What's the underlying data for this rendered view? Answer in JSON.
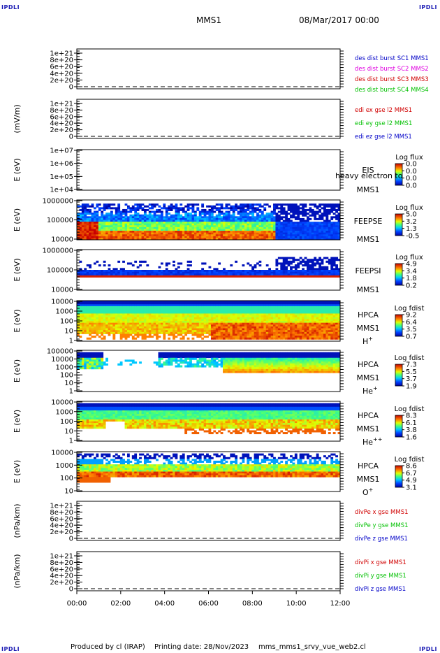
{
  "corner_label": "IPDLI",
  "header": {
    "mission": "MMS1",
    "datetime": "08/Mar/2017 00:00"
  },
  "footer": {
    "produced_by": "Produced by cl (IRAP)",
    "printing_date": "Printing date: 28/Nov/2023",
    "file": "mms_mms1_srvy_vue_web2.cl"
  },
  "chart_data": [
    {
      "type": "line",
      "ylabel": "",
      "yticks": [
        "1e+21",
        "8e+20",
        "6e+20",
        "4e+20",
        "2e+20",
        "0"
      ],
      "ylim": [
        0,
        1e+21
      ],
      "series": [
        {
          "name": "des dist burst SC1 MMS1",
          "color": "#0000c8"
        },
        {
          "name": "des dist burst SC2 MMS2",
          "color": "#e000e0"
        },
        {
          "name": "des dist burst SC3 MMS3",
          "color": "#d00000"
        },
        {
          "name": "des dist burst SC4 MMS4",
          "color": "#00c000"
        }
      ],
      "values": "no data (zero dashed line)"
    },
    {
      "type": "line",
      "ylabel": "(mV/m)",
      "yticks": [
        "1e+21",
        "8e+20",
        "6e+20",
        "4e+20",
        "2e+20",
        "0"
      ],
      "ylim": [
        0,
        1e+21
      ],
      "series": [
        {
          "name": "edi ex gse l2 MMS1",
          "color": "#d00000"
        },
        {
          "name": "edi ey gse l2 MMS1",
          "color": "#00c000"
        },
        {
          "name": "edi ez gse l2 MMS1",
          "color": "#0000c8"
        }
      ],
      "values": "no data (zero dashed line)"
    },
    {
      "type": "heatmap",
      "ylabel": "E (eV)",
      "yticks": [
        "1e+07",
        "1e+06",
        "1e+05",
        "1e+04"
      ],
      "instrument": "EIS",
      "spacecraft": "MMS1",
      "note": "heavy electron to",
      "colorbar": {
        "title": "Log flux",
        "ticks": [
          "0.0",
          "0.0",
          "0.0",
          "0.0"
        ]
      },
      "values": "empty"
    },
    {
      "type": "heatmap",
      "ylabel": "E (eV)",
      "yticks": [
        "1000000",
        "100000",
        "10000"
      ],
      "instrument": "FEEPSE",
      "spacecraft": "MMS1",
      "colorbar": {
        "title": "Log flux",
        "ticks": [
          "5.0",
          "3.2",
          "1.3",
          "-0.5"
        ]
      }
    },
    {
      "type": "heatmap",
      "ylabel": "E (eV)",
      "yticks": [
        "1000000",
        "100000",
        "10000"
      ],
      "instrument": "FEEPSI",
      "spacecraft": "MMS1",
      "colorbar": {
        "title": "Log flux",
        "ticks": [
          "4.9",
          "3.4",
          "1.8",
          "0.2"
        ]
      }
    },
    {
      "type": "heatmap",
      "ylabel": "E (eV)",
      "yticks": [
        "10000",
        "1000",
        "100",
        "10",
        "1"
      ],
      "instrument": "HPCA",
      "spacecraft": "MMS1",
      "species": "H",
      "species_sup": "+",
      "colorbar": {
        "title": "Log fdist",
        "ticks": [
          "9.2",
          "6.4",
          "3.5",
          "0.7"
        ]
      }
    },
    {
      "type": "heatmap",
      "ylabel": "E (eV)",
      "yticks": [
        "100000",
        "10000",
        "1000",
        "100",
        "10",
        "1"
      ],
      "instrument": "HPCA",
      "spacecraft": "MMS1",
      "species": "He",
      "species_sup": "+",
      "colorbar": {
        "title": "Log fdist",
        "ticks": [
          "7.3",
          "5.5",
          "3.7",
          "1.9"
        ]
      }
    },
    {
      "type": "heatmap",
      "ylabel": "E (eV)",
      "yticks": [
        "10000",
        "1000",
        "100",
        "10",
        "1"
      ],
      "instrument": "HPCA",
      "spacecraft": "MMS1",
      "species": "He",
      "species_sup": "++",
      "colorbar": {
        "title": "Log fdist",
        "ticks": [
          "8.3",
          "6.1",
          "3.8",
          "1.6"
        ]
      }
    },
    {
      "type": "heatmap",
      "ylabel": "E (eV)",
      "yticks": [
        "10000",
        "1000",
        "100",
        "10"
      ],
      "instrument": "HPCA",
      "spacecraft": "MMS1",
      "species": "O",
      "species_sup": "+",
      "colorbar": {
        "title": "Log fdist",
        "ticks": [
          "8.6",
          "6.7",
          "4.9",
          "3.1"
        ]
      }
    },
    {
      "type": "line",
      "ylabel": "(nPa/km)",
      "yticks": [
        "1e+21",
        "8e+20",
        "6e+20",
        "4e+20",
        "2e+20",
        "0"
      ],
      "ylim": [
        0,
        1e+21
      ],
      "series": [
        {
          "name": "divPe x gse MMS1",
          "color": "#d00000"
        },
        {
          "name": "divPe y gse MMS1",
          "color": "#00c000"
        },
        {
          "name": "divPe z gse MMS1",
          "color": "#0000c8"
        }
      ],
      "values": "no data (zero dashed line)"
    },
    {
      "type": "line",
      "ylabel": "(nPa/km)",
      "yticks": [
        "1e+21",
        "8e+20",
        "6e+20",
        "4e+20",
        "2e+20",
        "0"
      ],
      "ylim": [
        0,
        1e+21
      ],
      "series": [
        {
          "name": "divPi x gse MMS1",
          "color": "#d00000"
        },
        {
          "name": "divPi y gse MMS1",
          "color": "#00c000"
        },
        {
          "name": "divPi z gse MMS1",
          "color": "#0000c8"
        }
      ],
      "values": "no data (zero dashed line)"
    }
  ],
  "xaxis": {
    "ticks": [
      "00:00",
      "02:00",
      "04:00",
      "06:00",
      "08:00",
      "10:00",
      "12:00"
    ],
    "xlim": [
      "00:00",
      "12:00"
    ]
  }
}
